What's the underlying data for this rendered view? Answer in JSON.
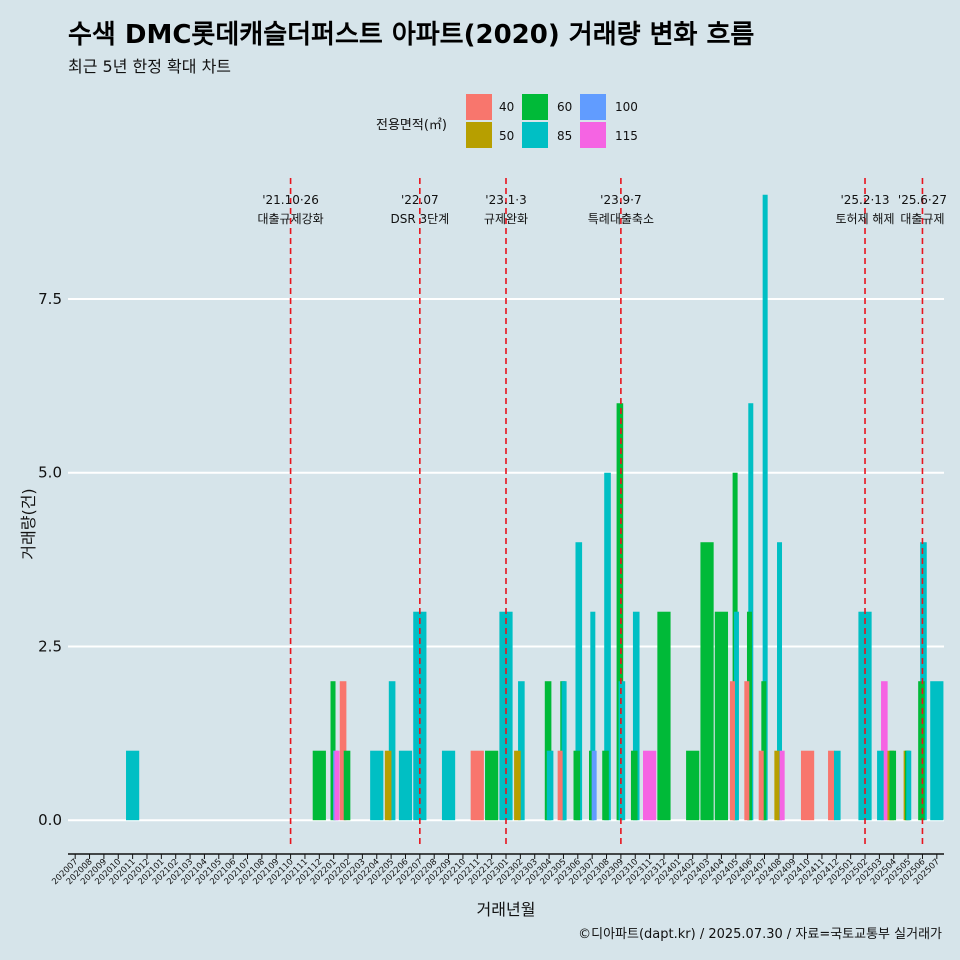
{
  "title": "수색 DMC롯데캐슬더퍼스트 아파트(2020) 거래량 변화 흐름",
  "subtitle": "최근 5년 한정 확대 차트",
  "caption": "©디아파트(dapt.kr) / 2025.07.30 / 자료=국토교통부 실거래가",
  "legend": {
    "title": "전용면적(㎡)",
    "items": [
      {
        "label": "40",
        "color": "#F8766D"
      },
      {
        "label": "50",
        "color": "#B79F00"
      },
      {
        "label": "60",
        "color": "#00BA38"
      },
      {
        "label": "85",
        "color": "#00BFC4"
      },
      {
        "label": "100",
        "color": "#619CFF"
      },
      {
        "label": "115",
        "color": "#F564E3"
      }
    ]
  },
  "chart_data": {
    "type": "bar",
    "title": "수색 DMC롯데캐슬더퍼스트 아파트(2020) 거래량 변화 흐름",
    "xlabel": "거래년월",
    "ylabel": "거래량(건)",
    "ylim": [
      -0.4,
      9.5
    ],
    "yticks": [
      "0.0",
      "2.5",
      "5.0",
      "7.5"
    ],
    "ytick_values": [
      0,
      2.5,
      5,
      7.5
    ],
    "months": [
      "202007",
      "202008",
      "202009",
      "202010",
      "202011",
      "202012",
      "202101",
      "202102",
      "202103",
      "202104",
      "202105",
      "202106",
      "202107",
      "202108",
      "202109",
      "202110",
      "202111",
      "202112",
      "202201",
      "202202",
      "202203",
      "202204",
      "202205",
      "202206",
      "202207",
      "202208",
      "202209",
      "202210",
      "202211",
      "202212",
      "202301",
      "202302",
      "202303",
      "202304",
      "202305",
      "202306",
      "202307",
      "202308",
      "202309",
      "202310",
      "202311",
      "202312",
      "202401",
      "202402",
      "202403",
      "202404",
      "202405",
      "202406",
      "202407",
      "202408",
      "202409",
      "202410",
      "202411",
      "202412",
      "202501",
      "202502",
      "202503",
      "202504",
      "202505",
      "202506",
      "202507"
    ],
    "bars": [
      {
        "month": "202011",
        "area": "85",
        "value": 1
      },
      {
        "month": "202112",
        "area": "60",
        "value": 1
      },
      {
        "month": "202201",
        "area": "60",
        "value": 2
      },
      {
        "month": "202201",
        "area": "100",
        "value": 1
      },
      {
        "month": "202201",
        "area": "115",
        "value": 1
      },
      {
        "month": "202202",
        "area": "40",
        "value": 2
      },
      {
        "month": "202202",
        "area": "60",
        "value": 1
      },
      {
        "month": "202204",
        "area": "85",
        "value": 1
      },
      {
        "month": "202205",
        "area": "50",
        "value": 1
      },
      {
        "month": "202205",
        "area": "85",
        "value": 2
      },
      {
        "month": "202206",
        "area": "85",
        "value": 1
      },
      {
        "month": "202207",
        "area": "85",
        "value": 3
      },
      {
        "month": "202209",
        "area": "85",
        "value": 1
      },
      {
        "month": "202211",
        "area": "40",
        "value": 1
      },
      {
        "month": "202212",
        "area": "60",
        "value": 1
      },
      {
        "month": "202301",
        "area": "85",
        "value": 3
      },
      {
        "month": "202302",
        "area": "50",
        "value": 1
      },
      {
        "month": "202302",
        "area": "85",
        "value": 2
      },
      {
        "month": "202304",
        "area": "60",
        "value": 2
      },
      {
        "month": "202304",
        "area": "85",
        "value": 1
      },
      {
        "month": "202305",
        "area": "40",
        "value": 1
      },
      {
        "month": "202305",
        "area": "60",
        "value": 2
      },
      {
        "month": "202305",
        "area": "85",
        "value": 2
      },
      {
        "month": "202306",
        "area": "60",
        "value": 1
      },
      {
        "month": "202306",
        "area": "85",
        "value": 4
      },
      {
        "month": "202307",
        "area": "60",
        "value": 1
      },
      {
        "month": "202307",
        "area": "85",
        "value": 3
      },
      {
        "month": "202307",
        "area": "100",
        "value": 1
      },
      {
        "month": "202308",
        "area": "60",
        "value": 1
      },
      {
        "month": "202308",
        "area": "85",
        "value": 5
      },
      {
        "month": "202309",
        "area": "60",
        "value": 6
      },
      {
        "month": "202309",
        "area": "85",
        "value": 2
      },
      {
        "month": "202310",
        "area": "60",
        "value": 1
      },
      {
        "month": "202310",
        "area": "85",
        "value": 3
      },
      {
        "month": "202311",
        "area": "115",
        "value": 1
      },
      {
        "month": "202312",
        "area": "60",
        "value": 3
      },
      {
        "month": "202402",
        "area": "60",
        "value": 1
      },
      {
        "month": "202403",
        "area": "60",
        "value": 4
      },
      {
        "month": "202404",
        "area": "60",
        "value": 3
      },
      {
        "month": "202405",
        "area": "40",
        "value": 2
      },
      {
        "month": "202405",
        "area": "60",
        "value": 5
      },
      {
        "month": "202405",
        "area": "85",
        "value": 3
      },
      {
        "month": "202406",
        "area": "40",
        "value": 2
      },
      {
        "month": "202406",
        "area": "60",
        "value": 3
      },
      {
        "month": "202406",
        "area": "85",
        "value": 6
      },
      {
        "month": "202407",
        "area": "40",
        "value": 1
      },
      {
        "month": "202407",
        "area": "60",
        "value": 2
      },
      {
        "month": "202407",
        "area": "85",
        "value": 9
      },
      {
        "month": "202408",
        "area": "50",
        "value": 1
      },
      {
        "month": "202408",
        "area": "85",
        "value": 4
      },
      {
        "month": "202408",
        "area": "115",
        "value": 1
      },
      {
        "month": "202410",
        "area": "40",
        "value": 1
      },
      {
        "month": "202412",
        "area": "40",
        "value": 1
      },
      {
        "month": "202412",
        "area": "85",
        "value": 1
      },
      {
        "month": "202502",
        "area": "85",
        "value": 3
      },
      {
        "month": "202503",
        "area": "85",
        "value": 1
      },
      {
        "month": "202503",
        "area": "115",
        "value": 2
      },
      {
        "month": "202504",
        "area": "50",
        "value": 1
      },
      {
        "month": "202504",
        "area": "60",
        "value": 1
      },
      {
        "month": "202505",
        "area": "50",
        "value": 1
      },
      {
        "month": "202505",
        "area": "60",
        "value": 1
      },
      {
        "month": "202505",
        "area": "85",
        "value": 1
      },
      {
        "month": "202506",
        "area": "60",
        "value": 2
      },
      {
        "month": "202506",
        "area": "85",
        "value": 4
      },
      {
        "month": "202507",
        "area": "85",
        "value": 2
      }
    ],
    "events": [
      {
        "month": "202110",
        "date": "'21.10·26",
        "label": "대출규제강화"
      },
      {
        "month": "202207",
        "date": "'22.07",
        "label": "DSR 3단계"
      },
      {
        "month": "202301",
        "date": "'23.1·3",
        "label": "규제완화"
      },
      {
        "month": "202309",
        "date": "'23.9·7",
        "label": "특례대출축소"
      },
      {
        "month": "202502",
        "date": "'25.2·13",
        "label": "토허제 해제"
      },
      {
        "month": "202506",
        "date": "'25.6·27",
        "label": "대출규제"
      }
    ]
  }
}
